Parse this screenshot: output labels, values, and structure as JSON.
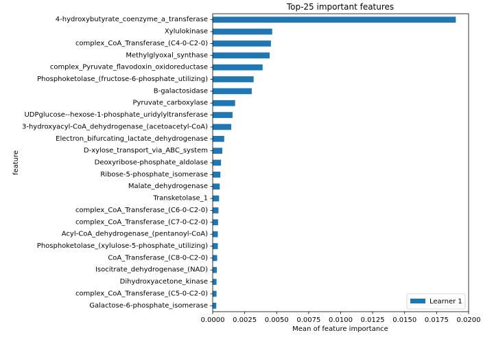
{
  "chart_data": {
    "type": "bar",
    "orientation": "horizontal",
    "title": "Top-25 important features",
    "xlabel": "Mean of feature importance",
    "ylabel": "feature",
    "xlim": [
      0,
      0.02
    ],
    "x_ticks": [
      "0.0000",
      "0.0025",
      "0.0050",
      "0.0075",
      "0.0100",
      "0.0125",
      "0.0150",
      "0.0175",
      "0.0200"
    ],
    "grid": false,
    "legend_position": "lower-right",
    "categories": [
      "4-hydroxybutyrate_coenzyme_a_transferase",
      "Xylulokinase",
      "complex_CoA_Transferase_(C4-0-C2-0)",
      "Methylglyoxal_synthase",
      "complex_Pyruvate_flavodoxin_oxidoreductase",
      "Phosphoketolase_(fructose-6-phosphate_utilizing)",
      "B-galactosidase",
      "Pyruvate_carboxylase",
      "UDPglucose--hexose-1-phosphate_uridylyltransferase",
      "3-hydroxyacyl-CoA_dehydrogenase_(acetoacetyl-CoA)",
      "Electron_bifurcating_lactate_dehydrogenase",
      "D-xylose_transport_via_ABC_system",
      "Deoxyribose-phosphate_aldolase",
      "Ribose-5-phosphate_isomerase",
      "Malate_dehydrogenase",
      "Transketolase_1",
      "complex_CoA_Transferase_(C6-0-C2-0)",
      "complex_CoA_Transferase_(C7-0-C2-0)",
      "Acyl-CoA_dehydrogenase_(pentanoyl-CoA)",
      "Phosphoketolase_(xylulose-5-phosphate_utilizing)",
      "CoA_Transferase_(C8-0-C2-0)",
      "Isocitrate_dehydrogenase_(NAD)",
      "Dihydroxyacetone_kinase",
      "complex_CoA_Transferase_(C5-0-C2-0)",
      "Galactose-6-phosphate_isomerase"
    ],
    "series": [
      {
        "name": "Learner 1",
        "color": "#1f77b4",
        "values": [
          0.019,
          0.00465,
          0.00455,
          0.00445,
          0.0039,
          0.0032,
          0.00305,
          0.00175,
          0.00155,
          0.00145,
          0.0009,
          0.00075,
          0.00065,
          0.0006,
          0.00055,
          0.0005,
          0.00045,
          0.00042,
          0.0004,
          0.0004,
          0.00035,
          0.00032,
          0.0003,
          0.0003,
          0.00028
        ]
      }
    ]
  }
}
